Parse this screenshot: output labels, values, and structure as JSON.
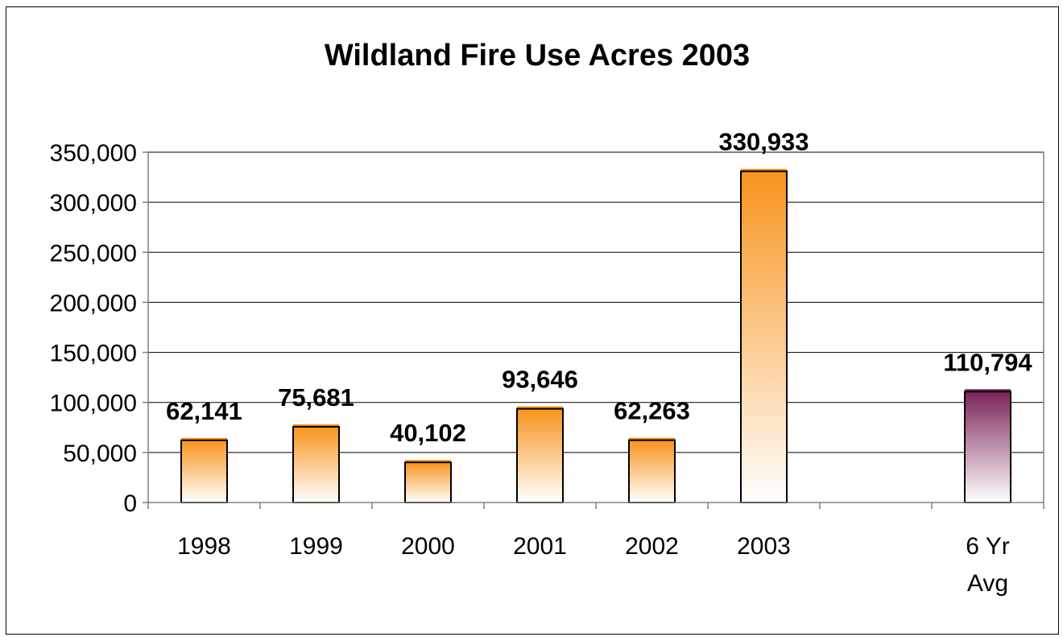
{
  "chart_data": {
    "type": "bar",
    "title": "Wildland Fire Use Acres 2003",
    "xlabel": "",
    "ylabel": "",
    "categories": [
      "1998",
      "1999",
      "2000",
      "2001",
      "2002",
      "2003",
      "",
      "6 Yr Avg"
    ],
    "category_lines": [
      [
        "1998"
      ],
      [
        "1999"
      ],
      [
        "2000"
      ],
      [
        "2001"
      ],
      [
        "2002"
      ],
      [
        "2003"
      ],
      [],
      [
        "6 Yr",
        "Avg"
      ]
    ],
    "values": [
      62141,
      75681,
      40102,
      93646,
      62263,
      330933,
      null,
      110794
    ],
    "data_labels": [
      "62,141",
      "75,681",
      "40,102",
      "93,646",
      "62,263",
      "330,933",
      "",
      "110,794"
    ],
    "yticks": [
      0,
      50000,
      100000,
      150000,
      200000,
      250000,
      300000,
      350000
    ],
    "ytick_labels": [
      "0",
      "50,000",
      "100,000",
      "150,000",
      "200,000",
      "250,000",
      "300,000",
      "350,000"
    ],
    "ylim": [
      0,
      350000
    ],
    "grid": true,
    "legend": "none",
    "colors": {
      "bar_gradient_top": "#f7941d",
      "bar_gradient_bottom": "#ffffff",
      "avg_gradient_top": "#7b2457",
      "avg_gradient_bottom": "#ffffff",
      "bar_outline": "#000000",
      "gridline": "#000000",
      "axis": "#808080"
    }
  }
}
